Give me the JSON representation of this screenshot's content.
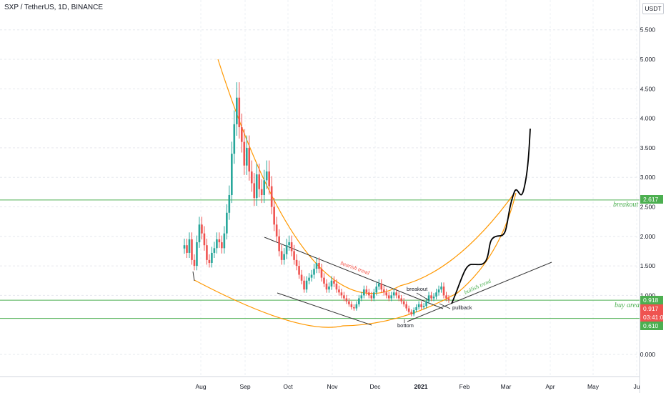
{
  "header": {
    "title": "SXP / TetherUS, 1D, BINANCE",
    "unit": "USDT"
  },
  "colors": {
    "up": "#26a69a",
    "down": "#ef5350",
    "level": "#4caf50",
    "curve": "#ff9800",
    "price_label": "#ef5350",
    "projection": "#000000",
    "bearish_text": "#f44336",
    "bullish_text": "#4caf50"
  },
  "annotations": {
    "bearish_trend": "bearish trend",
    "bullish_trend": "bullish trend",
    "breakout": "breakout",
    "bottom": "bottom",
    "pullback": "pullback",
    "breakout_level": "breakout",
    "buy_area": "buy area"
  },
  "chart_data": {
    "type": "candlestick",
    "x_labels": [
      "Aug",
      "Sep",
      "Oct",
      "Nov",
      "Dec",
      "2021",
      "Feb",
      "Mar",
      "Apr",
      "May",
      "Ju"
    ],
    "y_ticks": [
      "5.500",
      "5.000",
      "4.500",
      "4.000",
      "3.500",
      "3.000",
      "2.500",
      "2.000",
      "1.500",
      "1.000",
      "0.000"
    ],
    "y_range": [
      -0.35,
      5.85
    ],
    "grid": true,
    "price_labels": [
      {
        "text": "2.617",
        "value": 2.617,
        "color": "#4caf50"
      },
      {
        "text": "0.918",
        "value": 0.918,
        "color": "#4caf50"
      },
      {
        "text": "0.917",
        "value": 0.917,
        "color": "#ef5350"
      },
      {
        "text": "03:41:01",
        "value": 0.77,
        "color": "#ef5350"
      },
      {
        "text": "0.610",
        "value": 0.61,
        "color": "#4caf50"
      }
    ],
    "horizontal_levels": [
      2.617,
      0.918,
      0.61
    ],
    "series": [
      {
        "name": "SXP/USDT",
        "candles_approx_close": [
          1.85,
          1.72,
          1.95,
          1.6,
          1.5,
          1.9,
          2.2,
          2.05,
          1.85,
          1.6,
          1.55,
          1.72,
          1.8,
          1.95,
          1.9,
          1.8,
          2.05,
          2.4,
          2.7,
          3.4,
          3.9,
          4.35,
          3.85,
          3.6,
          3.2,
          3.5,
          3.1,
          2.9,
          2.65,
          3.05,
          2.8,
          2.7,
          2.95,
          3.1,
          2.85,
          2.5,
          2.2,
          2.0,
          1.75,
          1.6,
          1.7,
          1.85,
          1.9,
          1.75,
          1.6,
          1.5,
          1.35,
          1.25,
          1.1,
          1.25,
          1.3,
          1.35,
          1.45,
          1.55,
          1.45,
          1.3,
          1.2,
          1.1,
          1.15,
          1.25,
          1.2,
          1.1,
          1.05,
          1.0,
          0.95,
          0.9,
          0.85,
          0.8,
          0.78,
          0.85,
          0.95,
          1.0,
          1.1,
          1.05,
          1.0,
          0.95,
          1.05,
          1.15,
          1.2,
          1.1,
          1.05,
          1.0,
          0.95,
          1.0,
          1.05,
          1.0,
          0.95,
          0.9,
          0.85,
          0.78,
          0.72,
          0.68,
          0.75,
          0.8,
          0.85,
          0.8,
          0.82,
          0.9,
          1.0,
          0.95,
          0.98,
          1.05,
          1.1,
          1.15,
          1.0,
          0.95,
          0.92
        ]
      }
    ],
    "projection_path_prices": [
      0.918,
      1.2,
      1.5,
      1.6,
      1.45,
      1.6,
      1.9,
      2.05,
      2.3,
      2.65,
      2.75,
      3.4,
      3.8
    ]
  }
}
